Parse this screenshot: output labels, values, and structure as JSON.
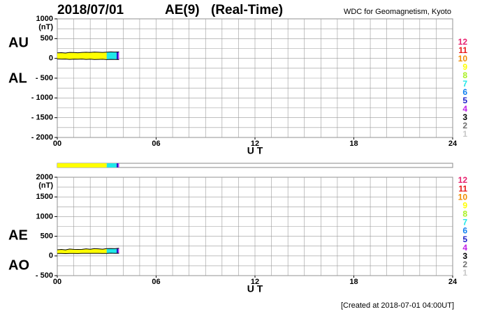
{
  "header": {
    "date": "2018/07/01",
    "index": "AE(9)",
    "mode": "(Real-Time)",
    "source": "WDC for Geomagnetism, Kyoto"
  },
  "footer": "[Created at 2018-07-01 04:00UT]",
  "coverage": [
    {
      "from": 0,
      "to": 3,
      "stations": 9
    },
    {
      "from": 3,
      "to": 3.6,
      "stations": 7
    },
    {
      "from": 3.6,
      "to": 3.7,
      "stations": 5
    },
    {
      "from": 3.7,
      "to": 3.75,
      "stations": 4
    }
  ],
  "station_legend": [
    {
      "stations": 12,
      "color": "#e8206e"
    },
    {
      "stations": 11,
      "color": "#e81818"
    },
    {
      "stations": 10,
      "color": "#f08c00"
    },
    {
      "stations": 9,
      "color": "#ffff00"
    },
    {
      "stations": 8,
      "color": "#a8f020"
    },
    {
      "stations": 7,
      "color": "#20e8e8"
    },
    {
      "stations": 6,
      "color": "#1080f0"
    },
    {
      "stations": 5,
      "color": "#2020c8"
    },
    {
      "stations": 4,
      "color": "#c020e8"
    },
    {
      "stations": 3,
      "color": "#000000"
    },
    {
      "stations": 2,
      "color": "#707070"
    },
    {
      "stations": 1,
      "color": "#c8c8c8"
    }
  ],
  "chart_data": [
    {
      "type": "line",
      "unit": "(nT)",
      "xlabel": "U T",
      "x": [
        0,
        0.25,
        0.5,
        0.75,
        1,
        1.25,
        1.5,
        1.75,
        2,
        2.25,
        2.5,
        2.75,
        3,
        3.25,
        3.5,
        3.75
      ],
      "series": [
        {
          "name": "AU",
          "color": "#000000",
          "values": [
            140,
            145,
            135,
            150,
            148,
            142,
            150,
            155,
            150,
            160,
            155,
            150,
            158,
            165,
            160,
            165
          ]
        },
        {
          "name": "AL",
          "color": "#000000",
          "values": [
            -15,
            -20,
            -18,
            -25,
            -20,
            -22,
            -18,
            -25,
            -20,
            -28,
            -25,
            -22,
            -30,
            -25,
            -28,
            -30
          ]
        }
      ],
      "xlim": [
        0,
        24
      ],
      "xticks": [
        {
          "value": 0,
          "label": "00"
        },
        {
          "value": 6,
          "label": "06"
        },
        12,
        18,
        24
      ],
      "xgrid": [
        0,
        1,
        2,
        3,
        4,
        5,
        6,
        7,
        8,
        9,
        10,
        11,
        12,
        13,
        14,
        15,
        16,
        17,
        18,
        19,
        20,
        21,
        22,
        23,
        24
      ],
      "ylim": [
        -2000,
        1000
      ],
      "yticks": [
        1000,
        500,
        0,
        {
          "value": -500,
          "label": "- 500"
        },
        {
          "value": -1000,
          "label": "- 1000"
        },
        {
          "value": -1500,
          "label": "- 1500"
        },
        {
          "value": -2000,
          "label": "- 2000"
        }
      ],
      "ygrid": [
        -2000,
        -1750,
        -1500,
        -1250,
        -1000,
        -750,
        -500,
        -250,
        0,
        250,
        500,
        750,
        1000
      ],
      "grid": true
    },
    {
      "type": "line",
      "unit": "(nT)",
      "xlabel": "U T",
      "x": [
        0,
        0.25,
        0.5,
        0.75,
        1,
        1.25,
        1.5,
        1.75,
        2,
        2.25,
        2.5,
        2.75,
        3,
        3.25,
        3.5,
        3.75
      ],
      "series": [
        {
          "name": "AE",
          "color": "#000000",
          "values": [
            155,
            165,
            153,
            175,
            168,
            164,
            168,
            180,
            170,
            188,
            180,
            172,
            188,
            190,
            188,
            195
          ]
        },
        {
          "name": "AO",
          "color": "#000000",
          "values": [
            62.5,
            62.5,
            58.5,
            62.5,
            64,
            60,
            66,
            65,
            65,
            66,
            65,
            64,
            64,
            70,
            66,
            67.5
          ]
        }
      ],
      "xlim": [
        0,
        24
      ],
      "xticks": [
        {
          "value": 0,
          "label": "00"
        },
        {
          "value": 6,
          "label": "06"
        },
        12,
        18,
        24
      ],
      "xgrid": [
        0,
        1,
        2,
        3,
        4,
        5,
        6,
        7,
        8,
        9,
        10,
        11,
        12,
        13,
        14,
        15,
        16,
        17,
        18,
        19,
        20,
        21,
        22,
        23,
        24
      ],
      "ylim": [
        -500,
        2000
      ],
      "yticks": [
        2000,
        1500,
        1000,
        500,
        0,
        {
          "value": -500,
          "label": "- 500"
        }
      ],
      "ygrid": [
        -500,
        -250,
        0,
        250,
        500,
        750,
        1000,
        1250,
        1500,
        1750,
        2000
      ],
      "grid": true
    }
  ]
}
